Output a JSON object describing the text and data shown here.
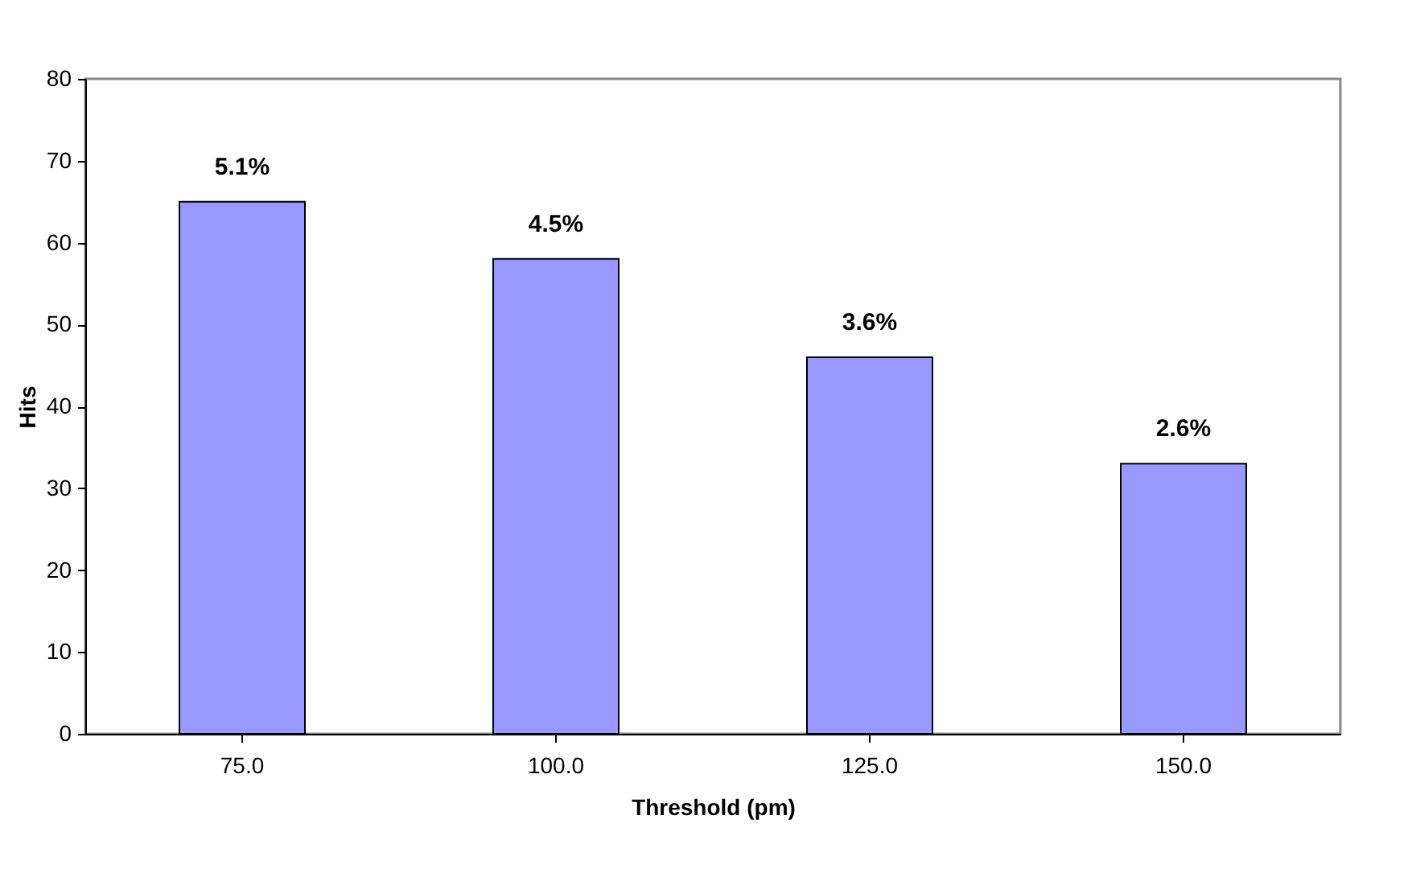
{
  "chart_data": {
    "type": "bar",
    "xlabel": "Threshold (pm)",
    "ylabel": "Hits",
    "categories": [
      "75.0",
      "100.0",
      "125.0",
      "150.0"
    ],
    "series": [
      {
        "color": "#9999ff",
        "values": [
          65,
          58,
          46,
          33
        ]
      }
    ],
    "annotations": [
      {
        "text": "5.1%",
        "x": "75.0",
        "y": 65
      },
      {
        "text": "4.5%",
        "x": "100.0",
        "y": 58
      },
      {
        "text": "3.6%",
        "x": "125.0",
        "y": 46
      },
      {
        "text": "2.6%",
        "x": "150.0",
        "y": 33
      }
    ],
    "ylim": [
      0,
      80
    ],
    "yticks": [
      0,
      10,
      20,
      30,
      40,
      50,
      60,
      70,
      80
    ],
    "grid": false,
    "legend": false
  }
}
